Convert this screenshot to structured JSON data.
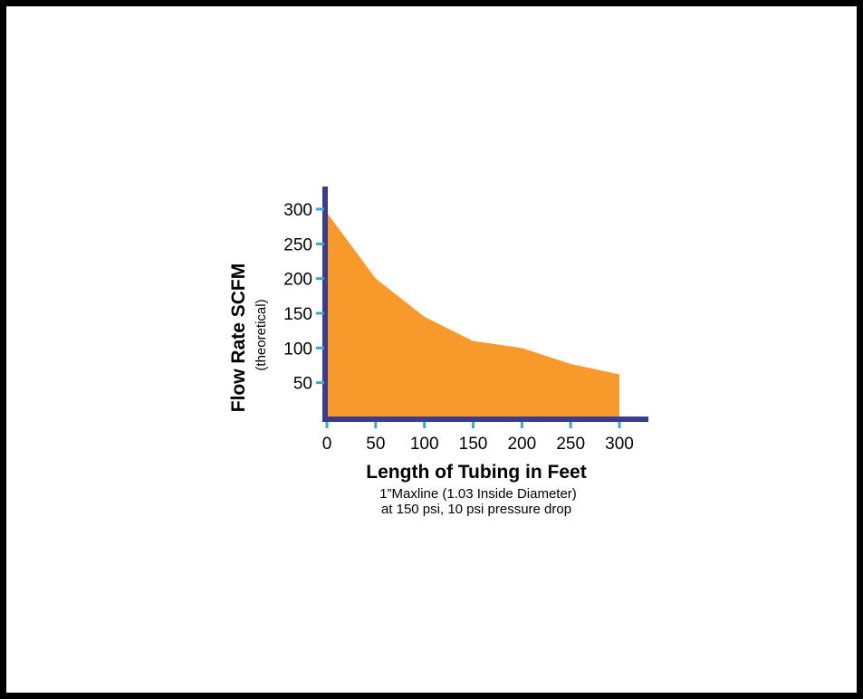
{
  "chart_data": {
    "type": "area",
    "ylabel": "Flow Rate SCFM",
    "ylabel_sub": "(theoretical)",
    "xlabel": "Length of Tubing in Feet",
    "notes": [
      "1”Maxline (1.03 Inside Diameter)",
      "at 150 psi, 10 psi pressure drop"
    ],
    "x_ticks": [
      0,
      50,
      100,
      150,
      200,
      250,
      300
    ],
    "y_ticks": [
      50,
      100,
      150,
      200,
      250,
      300
    ],
    "xlim": [
      0,
      330
    ],
    "ylim": [
      0,
      310
    ],
    "series": [
      {
        "x": [
          0,
          50,
          100,
          150,
          200,
          250,
          300
        ],
        "y": [
          295,
          200,
          145,
          110,
          100,
          77,
          62
        ]
      }
    ],
    "fill_color": "#F7992B",
    "axis_color": "#3B3C8C",
    "tick_color": "#3BA7D8"
  }
}
